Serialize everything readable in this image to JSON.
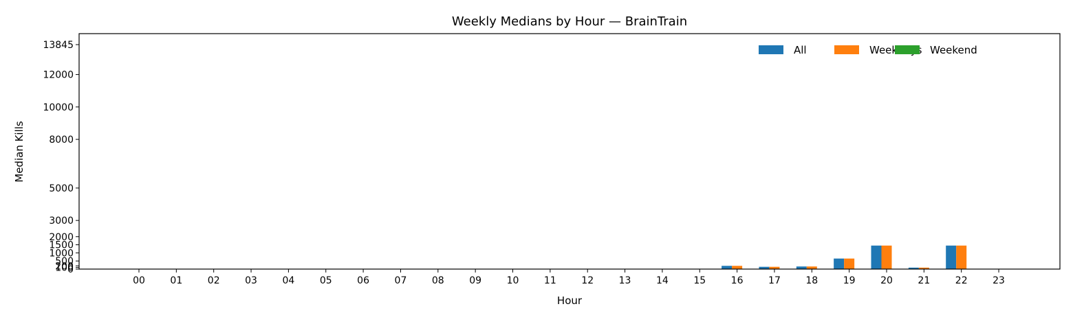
{
  "chart_data": {
    "type": "bar",
    "title": "Weekly Medians by Hour — BrainTrain",
    "xlabel": "Hour",
    "ylabel": "Median Kills",
    "categories": [
      "00",
      "01",
      "02",
      "03",
      "04",
      "05",
      "06",
      "07",
      "08",
      "09",
      "10",
      "11",
      "12",
      "13",
      "14",
      "15",
      "16",
      "17",
      "18",
      "19",
      "20",
      "21",
      "22",
      "23"
    ],
    "series": [
      {
        "name": "All",
        "color": "#1f77b4",
        "values": [
          0,
          0,
          0,
          0,
          0,
          0,
          0,
          0,
          0,
          0,
          0,
          0,
          0,
          0,
          0,
          0,
          200,
          140,
          160,
          650,
          1450,
          90,
          1450,
          0
        ]
      },
      {
        "name": "Weekdays",
        "color": "#ff7f0e",
        "values": [
          0,
          0,
          0,
          0,
          0,
          0,
          0,
          0,
          0,
          0,
          0,
          0,
          0,
          0,
          0,
          0,
          200,
          140,
          160,
          650,
          1450,
          90,
          1450,
          0
        ]
      },
      {
        "name": "Weekend",
        "color": "#2ca02c",
        "values": [
          0,
          0,
          0,
          0,
          0,
          0,
          0,
          0,
          0,
          0,
          0,
          0,
          0,
          0,
          0,
          0,
          0,
          0,
          0,
          0,
          0,
          0,
          0,
          0
        ]
      }
    ],
    "yticks": [
      0,
      100,
      200,
      500,
      1000,
      1500,
      2000,
      3000,
      5000,
      8000,
      10000,
      12000,
      13845
    ],
    "ytick_labels": [
      "0",
      "100",
      "200",
      "500",
      "1000",
      "1500",
      "2000",
      "3000",
      "5000",
      "8000",
      "10000",
      "12000",
      "13845"
    ],
    "ylim": [
      0,
      13845
    ],
    "grid": false,
    "legend_position": "top-right"
  }
}
